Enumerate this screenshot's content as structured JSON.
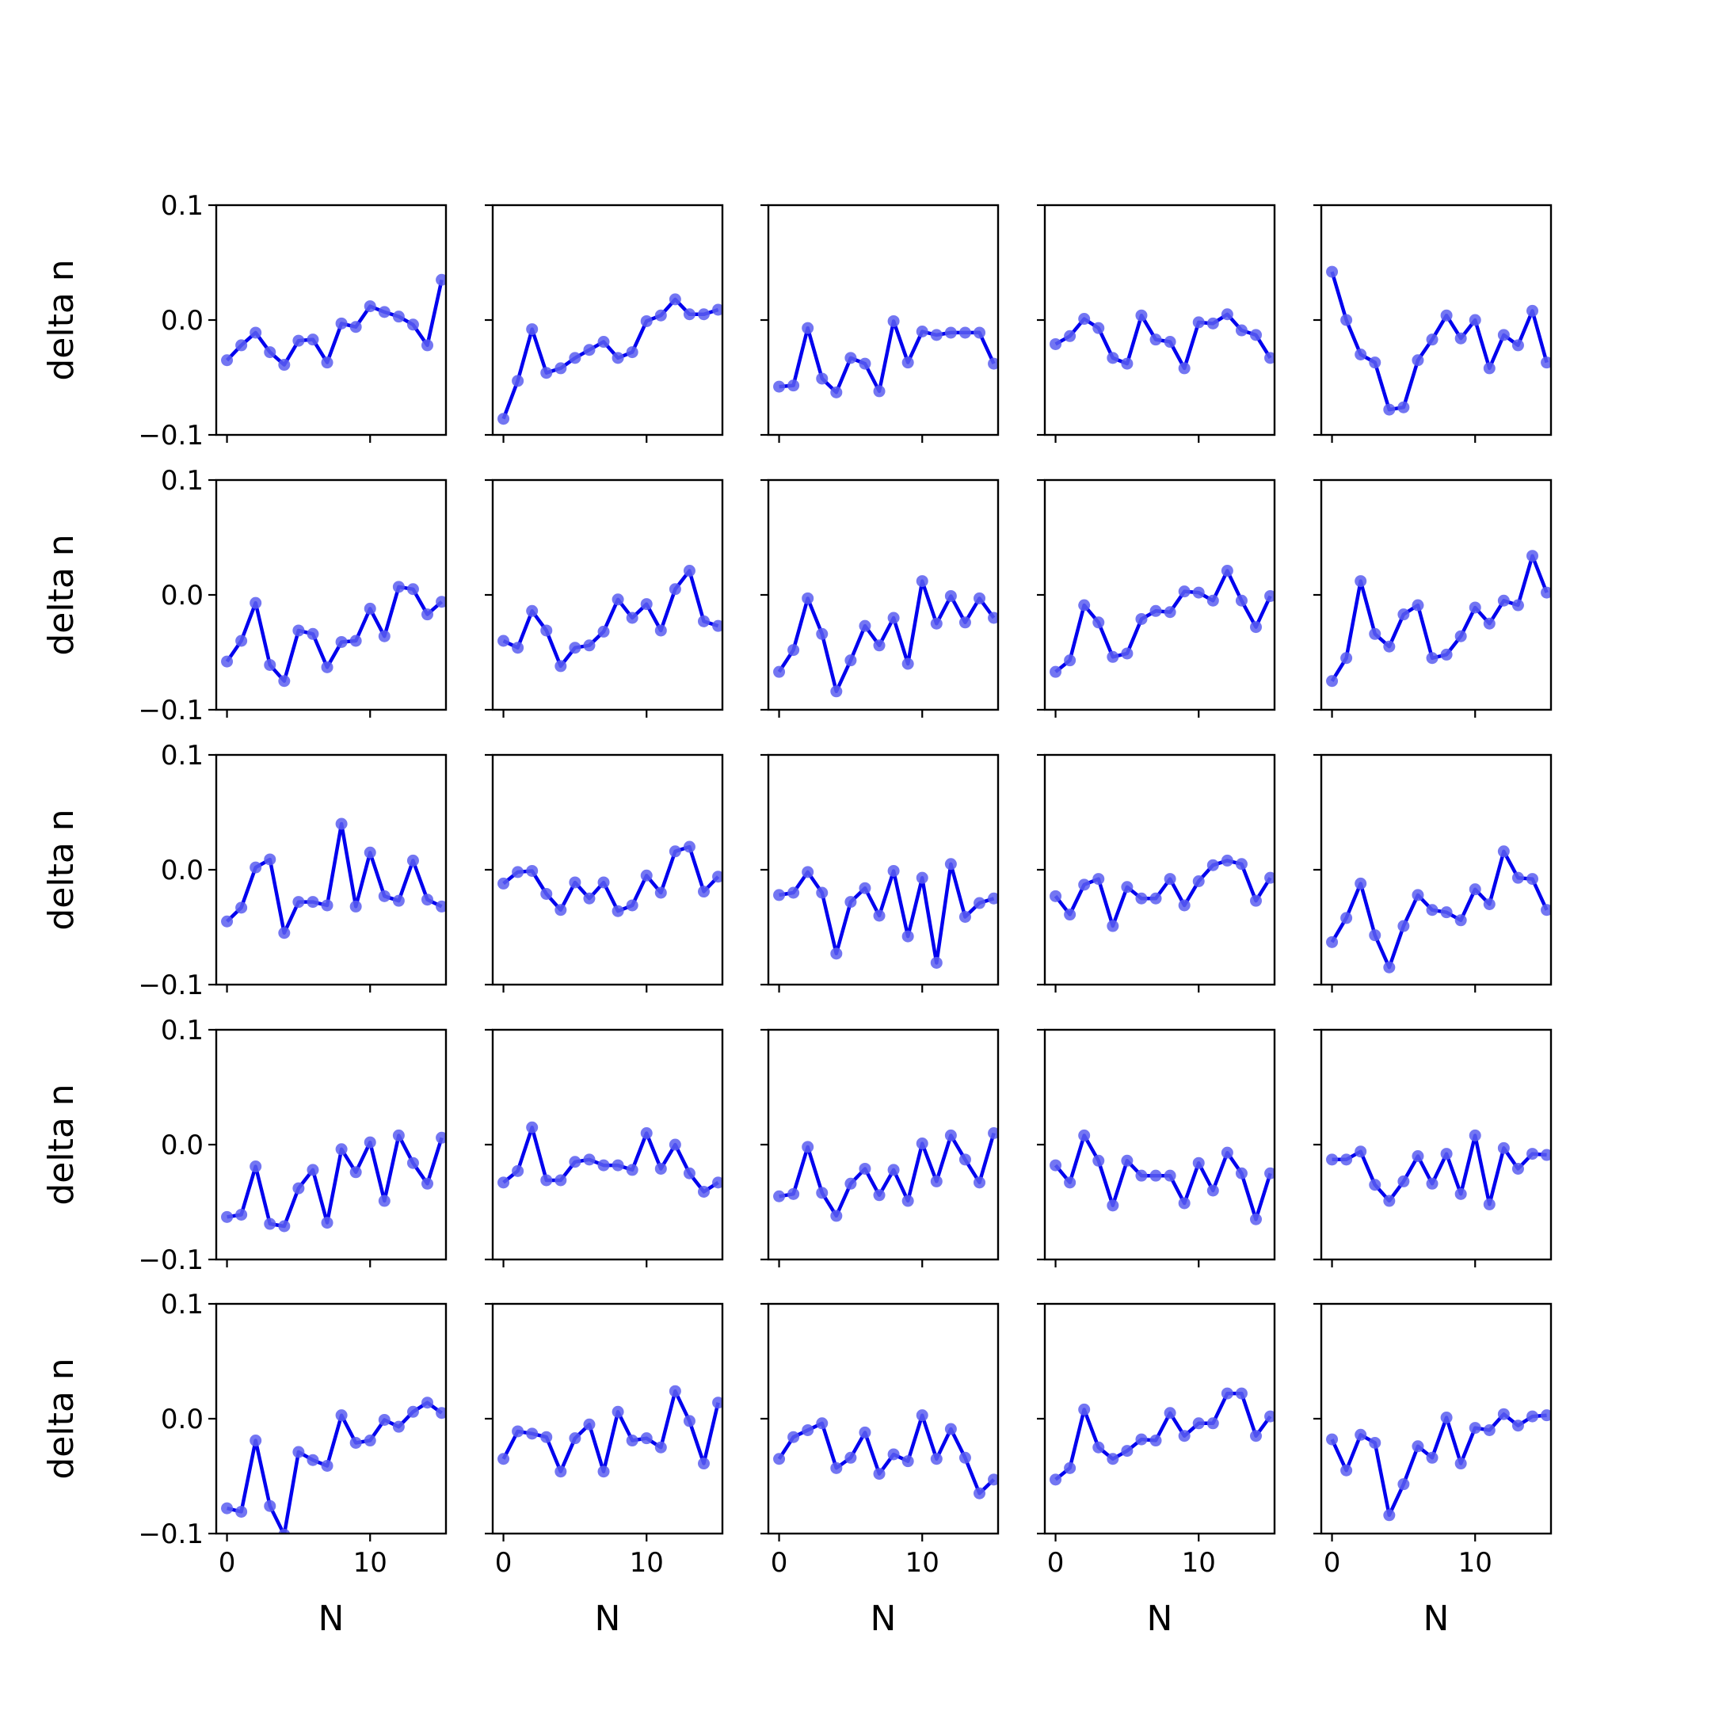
{
  "chart_data": {
    "type": "line",
    "layout": "5x5 grid of subplots",
    "xlabel": "N",
    "ylabel": "delta n",
    "xlim": [
      -0.75,
      15.3
    ],
    "ylim": [
      -0.1,
      0.1
    ],
    "xticks": [
      0,
      10
    ],
    "xtick_labels": [
      "0",
      "10"
    ],
    "yticks": [
      -0.1,
      0.0,
      0.1
    ],
    "ytick_labels": [
      "−0.1",
      "0.0",
      "0.1"
    ],
    "x": [
      0,
      1,
      2,
      3,
      4,
      5,
      6,
      7,
      8,
      9,
      10,
      11,
      12,
      13,
      14,
      15
    ],
    "line_color": "#0000ee",
    "marker_color": "#5a5ef0",
    "panels": [
      [
        -0.035,
        -0.022,
        -0.011,
        -0.028,
        -0.039,
        -0.018,
        -0.017,
        -0.037,
        -0.003,
        -0.006,
        0.012,
        0.007,
        0.003,
        -0.004,
        -0.022,
        0.035
      ],
      [
        -0.086,
        -0.053,
        -0.008,
        -0.046,
        -0.042,
        -0.033,
        -0.026,
        -0.019,
        -0.033,
        -0.028,
        -0.001,
        0.004,
        0.018,
        0.005,
        0.005,
        0.009
      ],
      [
        -0.058,
        -0.057,
        -0.007,
        -0.051,
        -0.063,
        -0.033,
        -0.038,
        -0.062,
        -0.001,
        -0.037,
        -0.01,
        -0.013,
        -0.011,
        -0.011,
        -0.011,
        -0.038
      ],
      [
        -0.021,
        -0.014,
        0.001,
        -0.007,
        -0.033,
        -0.038,
        0.004,
        -0.017,
        -0.019,
        -0.042,
        -0.002,
        -0.003,
        0.005,
        -0.009,
        -0.013,
        -0.033
      ],
      [
        0.042,
        0.0,
        -0.03,
        -0.037,
        -0.078,
        -0.076,
        -0.035,
        -0.017,
        0.004,
        -0.016,
        0.0,
        -0.042,
        -0.013,
        -0.022,
        0.008,
        -0.037
      ],
      [
        -0.058,
        -0.04,
        -0.007,
        -0.061,
        -0.075,
        -0.031,
        -0.034,
        -0.063,
        -0.041,
        -0.04,
        -0.012,
        -0.036,
        0.007,
        0.005,
        -0.017,
        -0.006
      ],
      [
        -0.04,
        -0.046,
        -0.014,
        -0.031,
        -0.062,
        -0.046,
        -0.044,
        -0.032,
        -0.004,
        -0.02,
        -0.008,
        -0.031,
        0.005,
        0.021,
        -0.023,
        -0.027
      ],
      [
        -0.067,
        -0.048,
        -0.003,
        -0.034,
        -0.084,
        -0.057,
        -0.027,
        -0.044,
        -0.02,
        -0.06,
        0.012,
        -0.025,
        -0.001,
        -0.024,
        -0.003,
        -0.02
      ],
      [
        -0.067,
        -0.057,
        -0.009,
        -0.024,
        -0.054,
        -0.051,
        -0.021,
        -0.014,
        -0.015,
        0.003,
        0.002,
        -0.005,
        0.021,
        -0.005,
        -0.028,
        -0.001
      ],
      [
        -0.075,
        -0.055,
        0.012,
        -0.034,
        -0.045,
        -0.017,
        -0.009,
        -0.055,
        -0.052,
        -0.036,
        -0.011,
        -0.025,
        -0.005,
        -0.009,
        0.034,
        0.002
      ],
      [
        -0.045,
        -0.033,
        0.002,
        0.009,
        -0.055,
        -0.028,
        -0.028,
        -0.031,
        0.04,
        -0.032,
        0.015,
        -0.023,
        -0.027,
        0.008,
        -0.026,
        -0.032
      ],
      [
        -0.012,
        -0.002,
        -0.001,
        -0.021,
        -0.035,
        -0.011,
        -0.025,
        -0.011,
        -0.036,
        -0.031,
        -0.005,
        -0.02,
        0.016,
        0.02,
        -0.019,
        -0.006
      ],
      [
        -0.022,
        -0.02,
        -0.002,
        -0.02,
        -0.073,
        -0.028,
        -0.016,
        -0.04,
        -0.001,
        -0.058,
        -0.007,
        -0.081,
        0.005,
        -0.041,
        -0.029,
        -0.025
      ],
      [
        -0.023,
        -0.039,
        -0.013,
        -0.008,
        -0.049,
        -0.015,
        -0.025,
        -0.025,
        -0.008,
        -0.031,
        -0.01,
        0.004,
        0.008,
        0.005,
        -0.027,
        -0.007
      ],
      [
        -0.063,
        -0.042,
        -0.012,
        -0.057,
        -0.085,
        -0.049,
        -0.022,
        -0.035,
        -0.037,
        -0.044,
        -0.017,
        -0.03,
        0.016,
        -0.007,
        -0.008,
        -0.035
      ],
      [
        -0.063,
        -0.061,
        -0.019,
        -0.069,
        -0.071,
        -0.038,
        -0.022,
        -0.068,
        -0.004,
        -0.024,
        0.002,
        -0.049,
        0.008,
        -0.016,
        -0.034,
        0.006
      ],
      [
        -0.033,
        -0.023,
        0.015,
        -0.031,
        -0.031,
        -0.015,
        -0.013,
        -0.018,
        -0.018,
        -0.022,
        0.01,
        -0.021,
        0.0,
        -0.025,
        -0.041,
        -0.033
      ],
      [
        -0.045,
        -0.043,
        -0.002,
        -0.042,
        -0.062,
        -0.034,
        -0.021,
        -0.044,
        -0.022,
        -0.049,
        0.001,
        -0.032,
        0.008,
        -0.013,
        -0.033,
        0.01
      ],
      [
        -0.018,
        -0.033,
        0.008,
        -0.014,
        -0.053,
        -0.014,
        -0.027,
        -0.027,
        -0.027,
        -0.051,
        -0.016,
        -0.04,
        -0.007,
        -0.025,
        -0.065,
        -0.025
      ],
      [
        -0.013,
        -0.013,
        -0.006,
        -0.035,
        -0.049,
        -0.032,
        -0.01,
        -0.034,
        -0.008,
        -0.043,
        0.008,
        -0.052,
        -0.003,
        -0.021,
        -0.008,
        -0.009
      ],
      [
        -0.078,
        -0.081,
        -0.019,
        -0.076,
        -0.101,
        -0.029,
        -0.036,
        -0.041,
        0.003,
        -0.021,
        -0.019,
        -0.001,
        -0.007,
        0.006,
        0.014,
        0.005
      ],
      [
        -0.035,
        -0.011,
        -0.013,
        -0.016,
        -0.046,
        -0.017,
        -0.005,
        -0.046,
        0.006,
        -0.019,
        -0.017,
        -0.025,
        0.024,
        -0.002,
        -0.039,
        0.014
      ],
      [
        -0.035,
        -0.016,
        -0.01,
        -0.004,
        -0.043,
        -0.034,
        -0.012,
        -0.048,
        -0.031,
        -0.037,
        0.003,
        -0.035,
        -0.009,
        -0.034,
        -0.065,
        -0.053
      ],
      [
        -0.053,
        -0.043,
        0.008,
        -0.025,
        -0.035,
        -0.028,
        -0.018,
        -0.019,
        0.005,
        -0.015,
        -0.004,
        -0.004,
        0.022,
        0.022,
        -0.015,
        0.002
      ],
      [
        -0.018,
        -0.045,
        -0.014,
        -0.021,
        -0.084,
        -0.057,
        -0.024,
        -0.034,
        0.001,
        -0.039,
        -0.008,
        -0.01,
        0.004,
        -0.006,
        0.002,
        0.003
      ]
    ]
  }
}
